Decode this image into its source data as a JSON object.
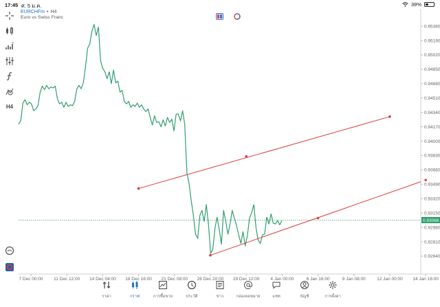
{
  "status_bar": {
    "time": "17:45",
    "date": "ศ. 5 ม.ค.",
    "battery": "39%",
    "battery_level": 0.39
  },
  "symbol": {
    "name": "EURCHFm",
    "timeframe": "H4",
    "separator": "•",
    "description": "Euro vs Swiss Franc"
  },
  "toolbar": {
    "items": [
      {
        "name": "crosshair-icon"
      },
      {
        "name": "chart-type-icon"
      },
      {
        "name": "indicators-icon"
      },
      {
        "name": "settings-sliders-icon"
      },
      {
        "name": "function-icon"
      },
      {
        "name": "objects-icon"
      },
      {
        "name": "timeframe-button",
        "label": "H4"
      },
      {
        "name": "magnify-icon"
      },
      {
        "name": "app-logo-icon"
      }
    ]
  },
  "chart_data": {
    "type": "line",
    "symbol": "EURCHFm",
    "y_ticks": [
      "0.95360",
      "0.95190",
      "0.95020",
      "0.94850",
      "0.94680",
      "0.94510",
      "0.94340",
      "0.94170",
      "0.94000",
      "0.93830",
      "0.93660",
      "0.93490",
      "0.93320",
      "0.93150",
      "0.92980",
      "0.92810",
      "0.92640"
    ],
    "ylim": [
      0.9255,
      0.9545
    ],
    "x_ticks": [
      "7 Dec 00:00",
      "11 Dec 12:00",
      "14 Dec 04:00",
      "18 Dec 16:00",
      "21 Dec 08:00",
      "26 Dec 20:00",
      "29 Dec 12:00",
      "4 Jan 00:00",
      "6 Jan 16:00",
      "9 Jan 08:00",
      "12 Jan 00:00",
      "14 Jan 16:00"
    ],
    "current_price": "0.93066",
    "current_price_value": 0.93066,
    "line_color": "#2e9e6e",
    "trend_color": "#e03a3a",
    "price_line_color": "#2e9e6e",
    "series": [
      {
        "values": [
          0.942,
          0.9424,
          0.9445,
          0.9449,
          0.9443,
          0.9446,
          0.9444,
          0.9436,
          0.9438,
          0.9442,
          0.9458,
          0.9465,
          0.9461,
          0.9466,
          0.9462,
          0.9464,
          0.9463,
          0.9465,
          0.945,
          0.9444,
          0.9446,
          0.944,
          0.9446,
          0.9441,
          0.9443,
          0.9442,
          0.9447,
          0.9462,
          0.9466,
          0.9462,
          0.9469,
          0.9488,
          0.951,
          0.9515,
          0.953,
          0.9538,
          0.9525,
          0.9535,
          0.9495,
          0.9486,
          0.9482,
          0.9474,
          0.9482,
          0.9468,
          0.9484,
          0.9469,
          0.9471,
          0.9458,
          0.946,
          0.9447,
          0.9444,
          0.9447,
          0.944,
          0.9443,
          0.9441,
          0.9445,
          0.944,
          0.9443,
          0.9438,
          0.9435,
          0.9438,
          0.9428,
          0.9419,
          0.943,
          0.9422,
          0.9423,
          0.9417,
          0.9425,
          0.9418,
          0.9428,
          0.9422,
          0.9426,
          0.9412,
          0.9432,
          0.9432,
          0.9424,
          0.9436,
          0.942,
          0.9362,
          0.935,
          0.933,
          0.9312,
          0.929,
          0.9285,
          0.9312,
          0.9318,
          0.9305,
          0.9325,
          0.9301,
          0.9267,
          0.9272,
          0.9297,
          0.931,
          0.9295,
          0.9278,
          0.9318,
          0.9305,
          0.929,
          0.9302,
          0.9318,
          0.9309,
          0.93,
          0.9289,
          0.9279,
          0.9293,
          0.9276,
          0.9288,
          0.9309,
          0.9315,
          0.9325,
          0.9298,
          0.9283,
          0.9279,
          0.9289,
          0.929,
          0.931,
          0.9302,
          0.9314,
          0.9303,
          0.9302,
          0.9306,
          0.9301,
          0.9306
        ]
      }
    ],
    "trendlines": [
      {
        "points": [
          {
            "x": "18 Dec 16:00",
            "y": 0.9344
          },
          {
            "x": "29 Dec 12:00",
            "y": 0.9382
          },
          {
            "x": "12 Jan 00:00",
            "y": 0.9429
          }
        ]
      },
      {
        "points": [
          {
            "x": "26 Dec 20:00",
            "y": 0.9265
          },
          {
            "x": "6 Jan 16:00",
            "y": 0.9309
          },
          {
            "x": "14 Jan 16:00",
            "y": 0.9354
          }
        ]
      }
    ]
  },
  "bottom_nav": {
    "items": [
      {
        "name": "nav-quotes",
        "icon": "arrows-updown-icon",
        "label": "ราคา"
      },
      {
        "name": "nav-chart",
        "icon": "candles-icon",
        "label": "กราฟ",
        "active": true
      },
      {
        "name": "nav-trade",
        "icon": "trade-chart-icon",
        "label": "การซื้อขาย"
      },
      {
        "name": "nav-history",
        "icon": "history-icon",
        "label": "ประวัติ"
      },
      {
        "name": "nav-news",
        "icon": "news-icon",
        "label": "ข่าว"
      },
      {
        "name": "nav-mailbox",
        "icon": "at-icon",
        "label": "กล่องจดหมาย"
      },
      {
        "name": "nav-chat",
        "icon": "chat-icon",
        "label": "แชท"
      },
      {
        "name": "nav-account",
        "icon": "user-icon",
        "label": "บัญชี"
      },
      {
        "name": "nav-settings",
        "icon": "gear-icon",
        "label": "การตั้งค่า"
      }
    ]
  }
}
